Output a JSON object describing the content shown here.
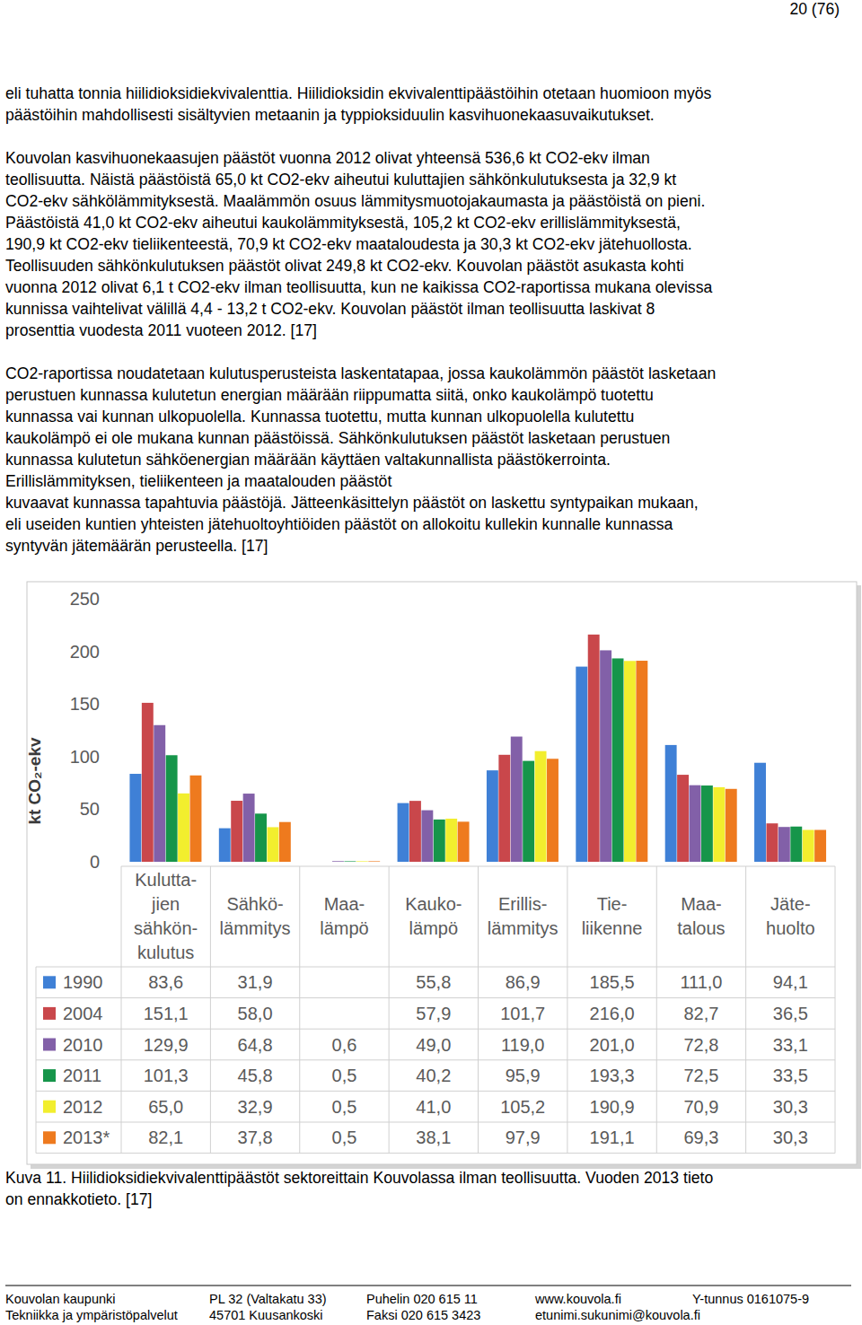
{
  "header": {
    "page": "20 (76)"
  },
  "paragraphs": [
    [
      "eli tuhatta tonnia hiilidioksidiekvivalenttia. Hiilidioksidin ekvivalenttipäästöihin otetaan huomioon myös",
      "päästöihin mahdollisesti sisältyvien metaanin ja typpioksiduulin kasvihuonekaasuvaikutukset."
    ],
    [
      "Kouvolan kasvihuonekaasujen päästöt vuonna 2012 olivat yhteensä 536,6 kt CO2-ekv ilman",
      "teollisuutta. Näistä päästöistä 65,0 kt CO2-ekv aiheutui kuluttajien sähkönkulutuksesta ja 32,9 kt",
      "CO2-ekv sähkölämmityksestä. Maalämmön osuus lämmitysmuotojakaumasta ja päästöistä on pieni.",
      "Päästöistä 41,0 kt CO2-ekv aiheutui kaukolämmityksestä, 105,2 kt CO2-ekv erillislämmityksestä,",
      "190,9 kt CO2-ekv tieliikenteestä, 70,9 kt CO2-ekv maataloudesta ja 30,3 kt CO2-ekv jätehuollosta.",
      "Teollisuuden sähkönkulutuksen päästöt olivat 249,8 kt CO2-ekv. Kouvolan päästöt asukasta kohti",
      "vuonna 2012 olivat 6,1 t CO2-ekv ilman teollisuutta, kun ne kaikissa CO2-raportissa mukana olevissa",
      "kunnissa vaihtelivat välillä 4,4 - 13,2 t CO2-ekv. Kouvolan päästöt ilman teollisuutta laskivat 8",
      "prosenttia vuodesta 2011 vuoteen 2012. [17]"
    ],
    [
      "CO2-raportissa noudatetaan kulutusperusteista laskentatapaa, jossa kaukolämmön päästöt lasketaan",
      "perustuen kunnassa kulutetun energian määrään riippumatta siitä, onko kaukolämpö tuotettu",
      "kunnassa vai kunnan ulkopuolella. Kunnassa tuotettu, mutta kunnan ulkopuolella kulutettu",
      "kaukolämpö ei ole mukana kunnan päästöissä. Sähkönkulutuksen päästöt lasketaan perustuen",
      "kunnassa kulutetun sähköenergian määrään käyttäen valtakunnallista päästökerrointa.",
      "Erillislämmityksen, tieliikenteen ja maatalouden päästöt",
      "kuvaavat kunnassa tapahtuvia päästöjä. Jätteenkäsittelyn päästöt on laskettu syntypaikan mukaan,",
      "eli useiden kuntien yhteisten jätehuoltoyhtiöiden päästöt on allokoitu kullekin kunnalle kunnassa",
      "syntyvän jätemäärän perusteella. [17]"
    ]
  ],
  "chart_data": {
    "type": "bar",
    "y_label": "kt CO₂-ekv",
    "categories": [
      "Kulutta-\njien\nsähkön-\nkulutus",
      "Sähkö-\nlämmitys",
      "Maa-\nlämpö",
      "Kauko-\nlämpö",
      "Erillis-\nlämmitys",
      "Tie-\nliikenne",
      "Maa-\ntalous",
      "Jäte-\nhuolto"
    ],
    "ylim": [
      0,
      250
    ],
    "yticks": [
      0,
      50,
      100,
      150,
      200,
      250
    ],
    "grid": false,
    "series": [
      {
        "name": "1990",
        "color": "#3f80d6",
        "values": [
          83.6,
          31.9,
          null,
          55.8,
          86.9,
          185.5,
          111.0,
          94.1
        ],
        "value_labels": [
          "83,6",
          "31,9",
          null,
          "55,8",
          "86,9",
          "185,5",
          "111,0",
          "94,1"
        ]
      },
      {
        "name": "2004",
        "color": "#c9474b",
        "values": [
          151.1,
          58.0,
          null,
          57.9,
          101.7,
          216.0,
          82.7,
          36.5
        ],
        "value_labels": [
          "151,1",
          "58,0",
          null,
          "57,9",
          "101,7",
          "216,0",
          "82,7",
          "36,5"
        ]
      },
      {
        "name": "2010",
        "color": "#8260a8",
        "values": [
          129.9,
          64.8,
          0.6,
          49.0,
          119.0,
          201.0,
          72.8,
          33.1
        ],
        "value_labels": [
          "129,9",
          "64,8",
          "0,6",
          "49,0",
          "119,0",
          "201,0",
          "72,8",
          "33,1"
        ]
      },
      {
        "name": "2011",
        "color": "#16954a",
        "values": [
          101.3,
          45.8,
          0.5,
          40.2,
          95.9,
          193.3,
          72.5,
          33.5
        ],
        "value_labels": [
          "101,3",
          "45,8",
          "0,5",
          "40,2",
          "95,9",
          "193,3",
          "72,5",
          "33,5"
        ]
      },
      {
        "name": "2012",
        "color": "#f2ee2e",
        "values": [
          65.0,
          32.9,
          0.5,
          41.0,
          105.2,
          190.9,
          70.9,
          30.3
        ],
        "value_labels": [
          "65,0",
          "32,9",
          "0,5",
          "41,0",
          "105,2",
          "190,9",
          "70,9",
          "30,3"
        ]
      },
      {
        "name": "2013*",
        "color": "#ee7a1e",
        "values": [
          82.1,
          37.8,
          0.5,
          38.1,
          97.9,
          191.1,
          69.3,
          30.3
        ],
        "value_labels": [
          "82,1",
          "37,8",
          "0,5",
          "38,1",
          "97,9",
          "191,1",
          "69,3",
          "30,3"
        ]
      }
    ]
  },
  "caption": [
    "Kuva 11. Hiilidioksidiekvivalenttipäästöt sektoreittain Kouvolassa ilman teollisuutta. Vuoden 2013 tieto",
    "on ennakkotieto. [17]"
  ],
  "footer": [
    [
      "Kouvolan kaupunki",
      "PL 32 (Valtakatu 33)",
      "Puhelin 020 615 11",
      "www.kouvola.fi",
      "Y-tunnus 0161075-9"
    ],
    [
      "Tekniikka ja ympäristöpalvelut",
      "45701 Kuusankoski",
      "Faksi 020 615 3423",
      "etunimi.sukunimi@kouvola.fi"
    ]
  ]
}
